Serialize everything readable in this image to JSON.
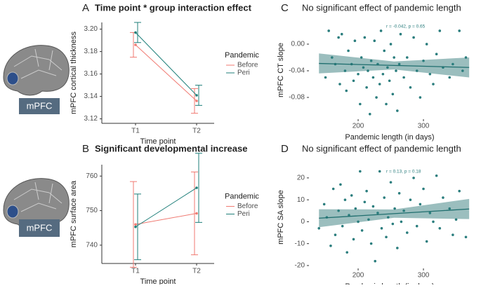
{
  "figure": {
    "region_labels": [
      "mPFC",
      "mPFC"
    ]
  },
  "chart_data": [
    {
      "type": "line",
      "panel": "A",
      "title": "Time point * group interaction effect",
      "xlabel": "Time point",
      "ylabel": "mPFC cortical thickness",
      "categories": [
        "T1",
        "T2"
      ],
      "legend_title": "Pandemic",
      "series": [
        {
          "name": "Before",
          "color": "#f07a72",
          "values": [
            3.186,
            3.136
          ],
          "errors": [
            0.011,
            0.011
          ]
        },
        {
          "name": "Peri",
          "color": "#1f7f7a",
          "values": [
            3.197,
            3.141
          ],
          "errors": [
            0.009,
            0.009
          ]
        }
      ],
      "ylim": [
        3.116,
        3.206
      ],
      "yticks": [
        3.12,
        3.14,
        3.16,
        3.18,
        {
          "value": 3.2,
          "label": "3.20"
        }
      ]
    },
    {
      "type": "line",
      "panel": "B",
      "title": "Significant developmental increase",
      "xlabel": "Time point",
      "ylabel": "mPFC surface area",
      "categories": [
        "T1",
        "T2"
      ],
      "legend_title": "Pandemic",
      "series": [
        {
          "name": "Before",
          "color": "#f07a72",
          "values": [
            746,
            749.2
          ],
          "errors": [
            12.4,
            12
          ]
        },
        {
          "name": "Peri",
          "color": "#1f7f7a",
          "values": [
            745.3,
            756.6
          ],
          "errors": [
            9.5,
            10
          ]
        }
      ],
      "ylim": [
        734.7,
        763.3
      ],
      "yticks": [
        740,
        750,
        760
      ]
    },
    {
      "type": "scatter",
      "panel": "C",
      "title": "No significant effect of pandemic length",
      "xlabel": "Pandemic length (in days)",
      "ylabel": "mPFC CT slope",
      "annotation": "r = -0.042, p = 0.65",
      "color": "#2a7d7d",
      "x": [
        150,
        155,
        160,
        165,
        170,
        172,
        175,
        180,
        182,
        185,
        190,
        193,
        195,
        200,
        203,
        205,
        208,
        210,
        213,
        215,
        218,
        220,
        223,
        225,
        228,
        230,
        233,
        235,
        238,
        240,
        243,
        245,
        248,
        250,
        253,
        255,
        258,
        260,
        263,
        265,
        270,
        275,
        280,
        285,
        290,
        295,
        300,
        305,
        310,
        315,
        320,
        325,
        330,
        340,
        345,
        355,
        360,
        365
      ],
      "values": [
        -0.05,
        0.02,
        -0.02,
        -0.03,
        0.01,
        -0.06,
        0.015,
        -0.04,
        -0.07,
        -0.01,
        -0.03,
        -0.055,
        0.005,
        -0.045,
        -0.09,
        -0.02,
        -0.035,
        0.01,
        -0.065,
        -0.04,
        -0.105,
        -0.025,
        -0.05,
        0.005,
        -0.08,
        -0.03,
        -0.06,
        0.02,
        -0.045,
        -0.01,
        -0.09,
        -0.035,
        -0.055,
        0,
        -0.075,
        -0.02,
        -0.04,
        -0.1,
        -0.03,
        0.015,
        -0.05,
        -0.02,
        -0.065,
        0.01,
        -0.04,
        -0.08,
        -0.025,
        0,
        -0.045,
        -0.06,
        -0.015,
        0.02,
        -0.035,
        -0.05,
        -0.03,
        0.02,
        -0.04,
        -0.02
      ],
      "fit": {
        "x": [
          140,
          255,
          370
        ],
        "y": [
          -0.029,
          -0.032,
          -0.035
        ],
        "lower": [
          -0.044,
          -0.038,
          -0.05
        ],
        "upper": [
          -0.014,
          -0.026,
          -0.02
        ]
      },
      "xlim": [
        124.7,
        372
      ],
      "xticks": [
        200,
        300
      ],
      "ylim": [
        -0.1126,
        0.0347
      ],
      "yticks": [
        {
          "value": 0,
          "label": "0.00"
        },
        {
          "value": -0.04,
          "label": "-0.04"
        },
        {
          "value": -0.08,
          "label": "-0.08"
        }
      ]
    },
    {
      "type": "scatter",
      "panel": "D",
      "title": "No significant effect of pandemic length",
      "xlabel": "Pandemic length (in days)",
      "ylabel": "mPFC SA slope",
      "annotation": "r = 0.13, p = 0.18",
      "color": "#2a7d7d",
      "x": [
        140,
        148,
        152,
        158,
        162,
        165,
        170,
        173,
        176,
        180,
        183,
        186,
        190,
        193,
        196,
        200,
        203,
        206,
        210,
        213,
        216,
        220,
        223,
        226,
        230,
        233,
        236,
        240,
        243,
        246,
        250,
        253,
        256,
        260,
        263,
        266,
        270,
        275,
        280,
        285,
        290,
        295,
        300,
        305,
        310,
        315,
        320,
        325,
        330,
        340,
        345,
        350,
        355,
        365
      ],
      "values": [
        -3,
        8,
        2,
        -11,
        15,
        -6,
        5,
        17,
        -2,
        10,
        -14,
        3,
        12,
        -8,
        6,
        0,
        23,
        -4,
        9,
        14,
        1,
        -10,
        7,
        -18,
        4,
        23,
        -3,
        11,
        -7,
        2,
        18,
        -1,
        6,
        -12,
        13,
        0,
        5,
        -5,
        10,
        20,
        -2,
        8,
        15,
        -9,
        4,
        0,
        21,
        -3,
        11,
        6,
        -6,
        1,
        14,
        -7
      ],
      "fit": {
        "x": [
          140,
          255,
          370
        ],
        "y": [
          1.6,
          3.7,
          5.8
        ],
        "lower": [
          -2.5,
          1.8,
          1.2
        ],
        "upper": [
          5.7,
          5.6,
          10.4
        ]
      },
      "xlim": [
        124.7,
        372
      ],
      "xticks": [
        200,
        300
      ],
      "ylim": [
        -21.3,
        25.4
      ],
      "yticks": [
        -20,
        -10,
        0,
        10,
        20
      ]
    }
  ]
}
